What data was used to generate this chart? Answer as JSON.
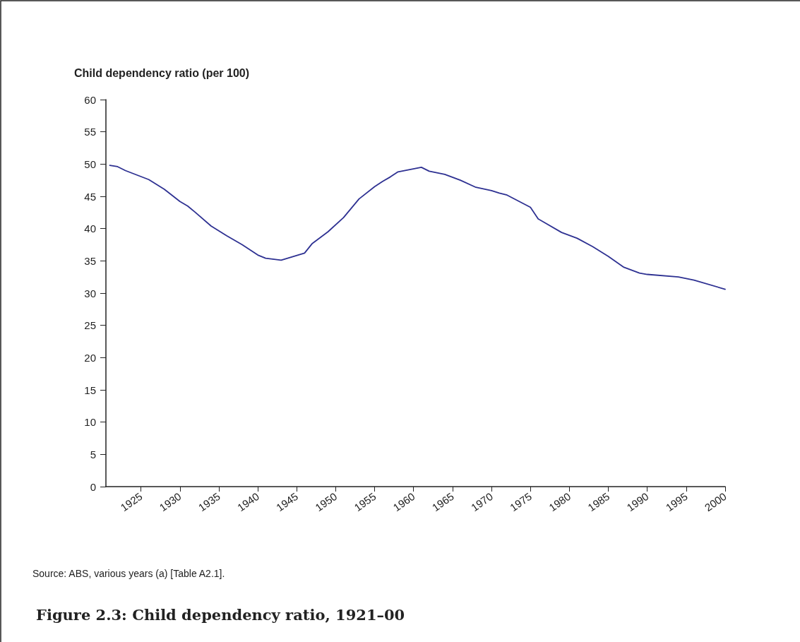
{
  "chart_data": {
    "type": "line",
    "title": "Figure 2.3: Child dependency ratio, 1921–00",
    "ylabel": "Child dependency ratio (per 100)",
    "annotations": [
      "Source: ABS, various years (a) [Table A2.1]."
    ],
    "x": [
      1921,
      1922,
      1923,
      1926,
      1928,
      1930,
      1931,
      1932,
      1934,
      1936,
      1938,
      1940,
      1941,
      1943,
      1946,
      1947,
      1949,
      1951,
      1953,
      1955,
      1956,
      1957,
      1958,
      1961,
      1962,
      1964,
      1966,
      1968,
      1970,
      1971,
      1972,
      1975,
      1976,
      1979,
      1981,
      1983,
      1985,
      1987,
      1989,
      1990,
      1994,
      1996,
      2000
    ],
    "series": [
      {
        "color": "#2e3192",
        "values": [
          49.8,
          49.6,
          49.0,
          47.6,
          46.1,
          44.2,
          43.5,
          42.5,
          40.4,
          38.9,
          37.5,
          35.9,
          35.4,
          35.1,
          36.2,
          37.7,
          39.5,
          41.7,
          44.6,
          46.5,
          47.3,
          48.0,
          48.8,
          49.5,
          48.9,
          48.4,
          47.5,
          46.4,
          45.9,
          45.5,
          45.2,
          43.3,
          41.5,
          39.4,
          38.5,
          37.2,
          35.7,
          34.0,
          33.1,
          32.9,
          32.5,
          32.0,
          30.6
        ]
      }
    ],
    "xlim": [
      1920.5,
      2000
    ],
    "xticks": [
      1925,
      1930,
      1935,
      1940,
      1945,
      1950,
      1955,
      1960,
      1965,
      1970,
      1975,
      1980,
      1985,
      1990,
      1995,
      2000
    ],
    "ylim": [
      0,
      60
    ],
    "yticks": [
      0,
      5,
      10,
      15,
      20,
      25,
      30,
      35,
      40,
      45,
      50,
      55,
      60
    ],
    "grid": false,
    "marker": "none",
    "line_style": "solid"
  }
}
